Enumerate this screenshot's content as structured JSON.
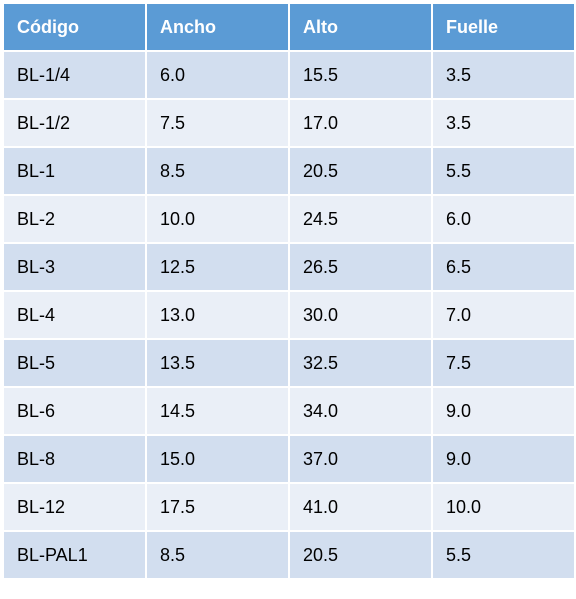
{
  "table": {
    "headers": [
      "Código",
      "Ancho",
      "Alto",
      "Fuelle"
    ],
    "rows": [
      [
        "BL-1/4",
        "6.0",
        "15.5",
        "3.5"
      ],
      [
        "BL-1/2",
        "7.5",
        "17.0",
        "3.5"
      ],
      [
        "BL-1",
        "8.5",
        "20.5",
        "5.5"
      ],
      [
        "BL-2",
        "10.0",
        "24.5",
        "6.0"
      ],
      [
        "BL-3",
        "12.5",
        "26.5",
        "6.5"
      ],
      [
        "BL-4",
        "13.0",
        "30.0",
        "7.0"
      ],
      [
        "BL-5",
        "13.5",
        "32.5",
        "7.5"
      ],
      [
        "BL-6",
        "14.5",
        "34.0",
        "9.0"
      ],
      [
        "BL-8",
        "15.0",
        "37.0",
        "9.0"
      ],
      [
        "BL-12",
        "17.5",
        "41.0",
        "10.0"
      ],
      [
        "BL-PAL1",
        "8.5",
        "20.5",
        "5.5"
      ]
    ]
  },
  "colors": {
    "header_bg": "#5b9bd5",
    "row_odd_bg": "#d2deef",
    "row_even_bg": "#eaeff7"
  }
}
